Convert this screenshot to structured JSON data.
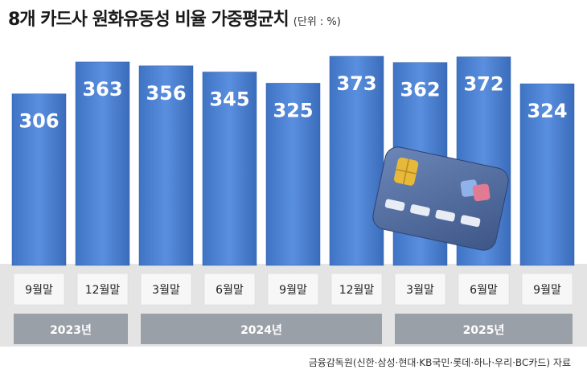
{
  "title": "8개 카드사 원화유동성 비율 가중평균치",
  "unit": "(단위 : %)",
  "source": "금융감독원(신한·삼성·현대·KB국민·롯데·하나·우리·BC카드) 자료",
  "colors": {
    "bar": "#4a7fd0",
    "bar_edge": "#2f5ea8",
    "panel": "#e4e4e4",
    "label_box": "#f7f7f7",
    "year_band": "#9aa0a8"
  },
  "chart_data": {
    "type": "bar",
    "title": "8개 카드사 원화유동성 비율 가중평균치",
    "ylabel": "",
    "xlabel": "",
    "ylim": [
      0,
      400
    ],
    "categories": [
      "9월말",
      "12월말",
      "3월말",
      "6월말",
      "9월말",
      "12월말",
      "3월말",
      "6월말",
      "9월말"
    ],
    "values": [
      306,
      363,
      356,
      345,
      325,
      373,
      362,
      372,
      324
    ],
    "groups": [
      {
        "label": "2023년",
        "count": 2
      },
      {
        "label": "2024년",
        "count": 4
      },
      {
        "label": "2025년",
        "count": 3
      }
    ],
    "grid": false,
    "legend": "none"
  }
}
